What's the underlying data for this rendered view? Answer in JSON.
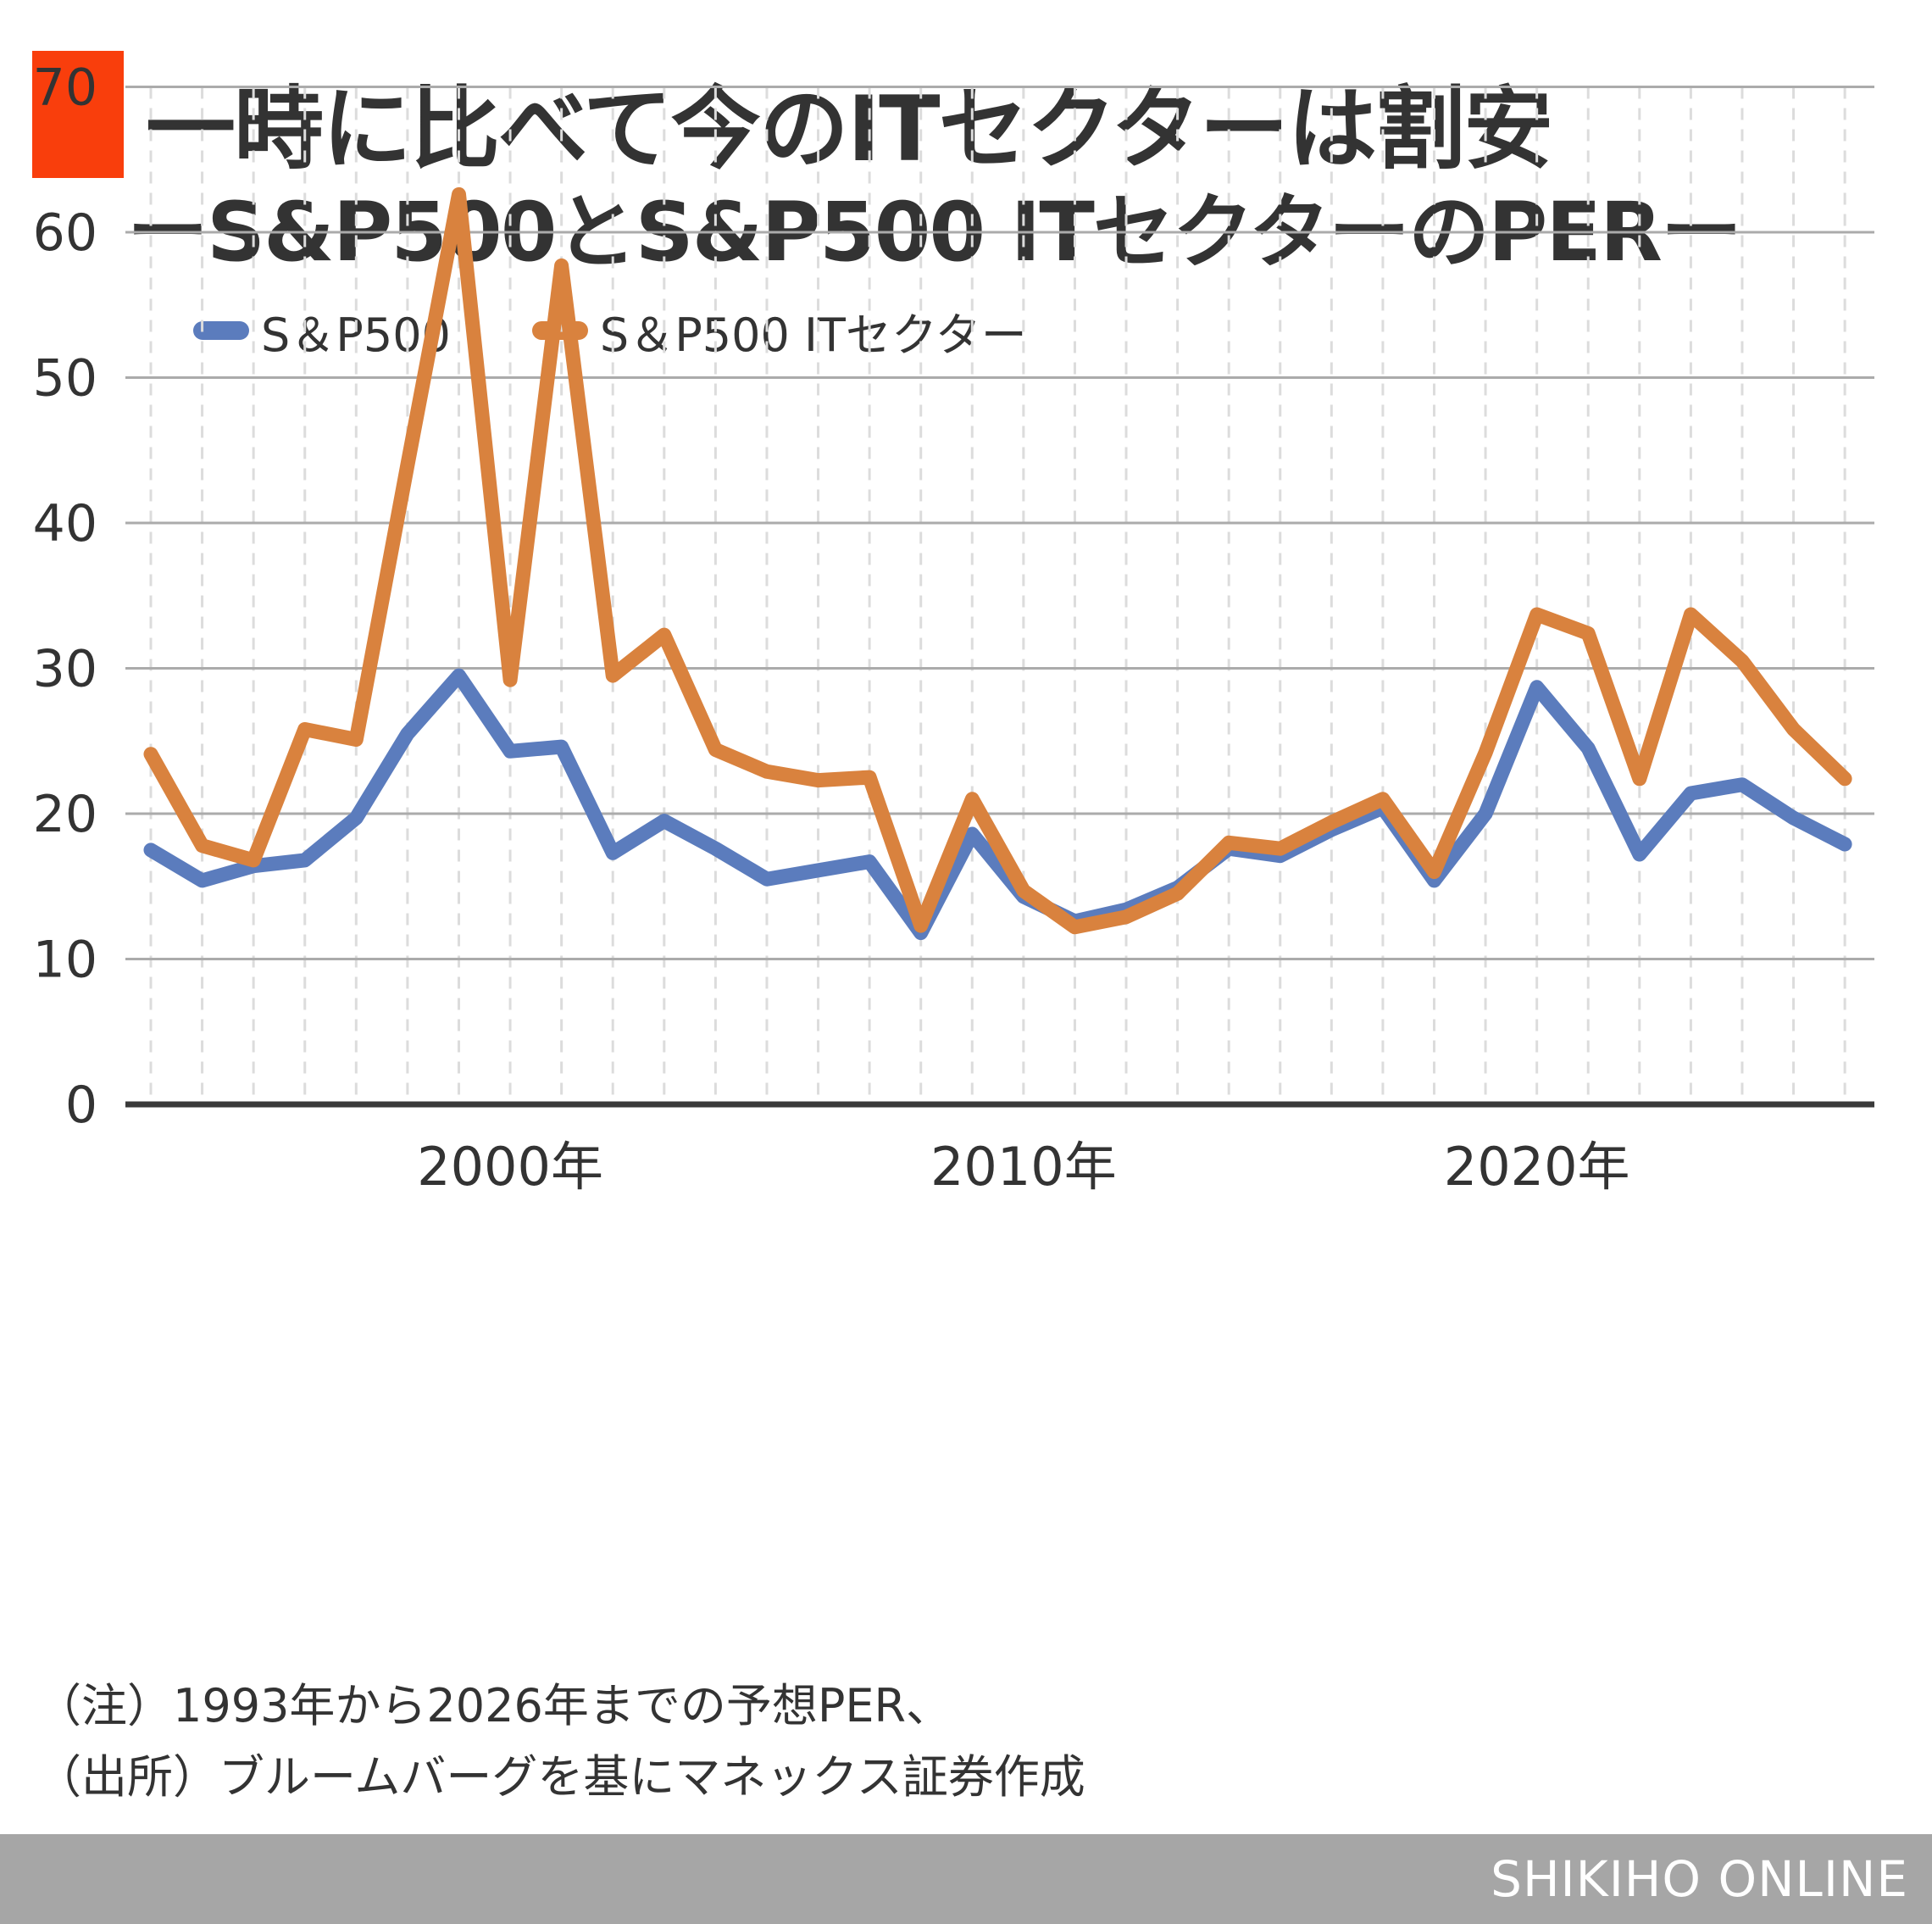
{
  "header": {
    "title": "一時に比べて今のITセクターは割安",
    "subtitle": "ーS&P500とS&P500 ITセクターのPERー",
    "accent_color": "#f93e0c"
  },
  "legend": {
    "items": [
      {
        "label": "S＆P500",
        "color": "#5b7cbd"
      },
      {
        "label": "S＆P500 ITセクター",
        "color": "#d9823e"
      }
    ]
  },
  "notes": {
    "line1": "（注）1993年から2026年までの予想PER、",
    "line2": "（出所）ブルームバーグを基にマネックス証券作成"
  },
  "footer": {
    "brand": "SHIKIHO ONLINE"
  },
  "chart_data": {
    "type": "line",
    "title": "S&P500とS&P500 ITセクターのPER（予想PER、1993年〜2026年）",
    "xlabel": "",
    "ylabel": "PER",
    "ylim": [
      0,
      70
    ],
    "yticks": [
      0,
      10,
      20,
      30,
      40,
      50,
      60,
      70
    ],
    "grid": {
      "horizontal": "solid-gray",
      "vertical": "dashed-light-per-year"
    },
    "legend_position": "top-left",
    "x": [
      1993,
      1994,
      1995,
      1996,
      1997,
      1998,
      1999,
      2000,
      2001,
      2002,
      2003,
      2004,
      2005,
      2006,
      2007,
      2008,
      2009,
      2010,
      2011,
      2012,
      2013,
      2014,
      2015,
      2016,
      2017,
      2018,
      2019,
      2020,
      2021,
      2022,
      2023,
      2024,
      2025,
      2026
    ],
    "xticks": [
      {
        "year": 2000,
        "label": "2000年"
      },
      {
        "year": 2010,
        "label": "2010年"
      },
      {
        "year": 2020,
        "label": "2020年"
      }
    ],
    "series": [
      {
        "name": "S＆P500",
        "color": "#5b7cbd",
        "values": [
          17.5,
          15.4,
          16.4,
          16.8,
          19.7,
          25.5,
          29.5,
          24.3,
          24.6,
          17.3,
          19.5,
          17.6,
          15.5,
          16.1,
          16.7,
          11.8,
          18.6,
          14.3,
          12.6,
          13.4,
          14.9,
          17.6,
          17.1,
          18.9,
          20.4,
          15.4,
          20.0,
          28.7,
          24.5,
          17.2,
          21.4,
          22.0,
          19.7,
          17.9
        ]
      },
      {
        "name": "S＆P500 ITセクター",
        "color": "#d9823e",
        "values": [
          24.1,
          17.8,
          16.8,
          25.8,
          25.1,
          44.0,
          62.6,
          29.2,
          57.7,
          29.5,
          32.3,
          24.4,
          22.9,
          22.3,
          22.5,
          12.3,
          21.0,
          14.7,
          12.2,
          12.9,
          14.5,
          18.0,
          17.6,
          19.4,
          21.0,
          16.0,
          24.2,
          33.7,
          32.4,
          22.4,
          33.7,
          30.5,
          25.8,
          22.4
        ]
      }
    ]
  }
}
